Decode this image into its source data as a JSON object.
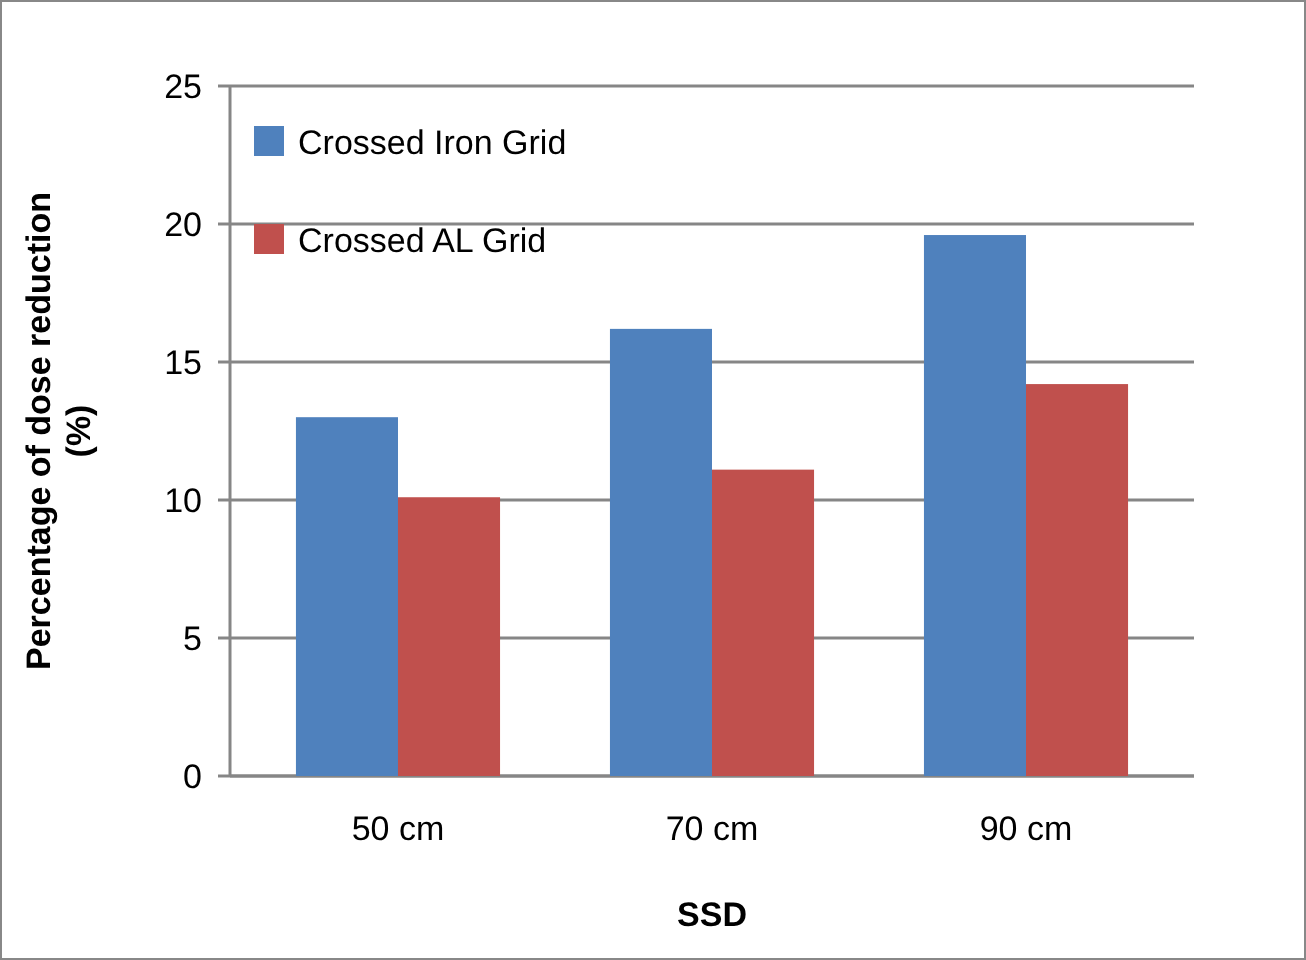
{
  "chart_data": {
    "type": "bar",
    "xlabel": "SSD",
    "ylabel": "Percentage of dose reduction\n(%)",
    "categories": [
      "50 cm",
      "70 cm",
      "90 cm"
    ],
    "series": [
      {
        "name": "Crossed Iron Grid",
        "color": "#4f81bd",
        "values": [
          13.0,
          16.2,
          19.6
        ]
      },
      {
        "name": "Crossed AL Grid",
        "color": "#c0504d",
        "values": [
          10.1,
          11.1,
          14.2
        ]
      }
    ],
    "ylim": [
      0,
      25
    ],
    "yticks": [
      0,
      5,
      10,
      15,
      20,
      25
    ],
    "grid": "y",
    "legend": "top left"
  }
}
